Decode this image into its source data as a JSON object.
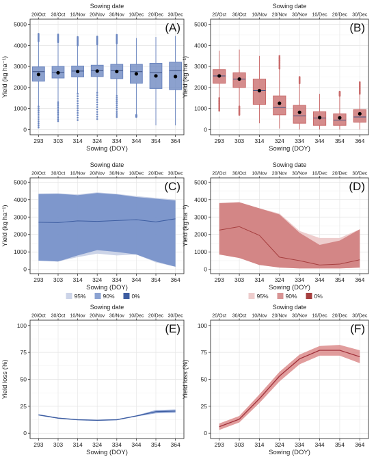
{
  "chart_data": [
    {
      "panel": "(A)",
      "type": "box",
      "color": "#6b86c0",
      "xlabel": "Sowing (DOY)",
      "ylabel": "Yield (kg ha⁻¹)",
      "top_label": "Sowing date",
      "top_ticks": [
        "20/Oct",
        "30/Oct",
        "10/Nov",
        "20/Nov",
        "30/Nov",
        "10/Dec",
        "20/Dec",
        "30/Dec"
      ],
      "x": [
        "293",
        "303",
        "314",
        "324",
        "334",
        "344",
        "354",
        "364"
      ],
      "ylim": [
        0,
        5000
      ],
      "yticks": [
        0,
        1000,
        2000,
        3000,
        4000,
        5000
      ],
      "boxes": [
        {
          "q1": 2300,
          "median": 2750,
          "q3": 2980,
          "mean": 2620,
          "wlo": 1100,
          "whi": 4200,
          "olo": 100,
          "ohi": 4550
        },
        {
          "q1": 2450,
          "median": 2720,
          "q3": 3000,
          "mean": 2700,
          "wlo": 1300,
          "whi": 4150,
          "olo": 400,
          "ohi": 4520
        },
        {
          "q1": 2500,
          "median": 2780,
          "q3": 3020,
          "mean": 2760,
          "wlo": 1700,
          "whi": 4000,
          "olo": 450,
          "ohi": 4400
        },
        {
          "q1": 2520,
          "median": 2800,
          "q3": 3060,
          "mean": 2780,
          "wlo": 1750,
          "whi": 4050,
          "olo": 500,
          "ohi": 4420
        },
        {
          "q1": 2420,
          "median": 2800,
          "q3": 3100,
          "mean": 2760,
          "wlo": 1600,
          "whi": 4100,
          "olo": 600,
          "ohi": 4500
        },
        {
          "q1": 2200,
          "median": 2750,
          "q3": 3100,
          "mean": 2650,
          "wlo": 700,
          "whi": 4350,
          "olo": 600,
          "ohi": 4350
        },
        {
          "q1": 1950,
          "median": 2700,
          "q3": 3150,
          "mean": 2550,
          "wlo": 200,
          "whi": 4400,
          "olo": 200,
          "ohi": 4400
        },
        {
          "q1": 1900,
          "median": 2800,
          "q3": 3200,
          "mean": 2520,
          "wlo": 200,
          "whi": 4450,
          "olo": 200,
          "ohi": 4450
        }
      ]
    },
    {
      "panel": "(B)",
      "type": "box",
      "color": "#c96b6b",
      "xlabel": "Sowing (DOY)",
      "ylabel": "Yield (kg ha⁻¹)",
      "top_label": "Sowing date",
      "top_ticks": [
        "20/Oct",
        "30/Oct",
        "10/Nov",
        "20/Nov",
        "30/Nov",
        "10/Dec",
        "20/Dec",
        "30/Dec"
      ],
      "x": [
        "293",
        "303",
        "314",
        "324",
        "334",
        "344",
        "354",
        "364"
      ],
      "ylim": [
        0,
        5000
      ],
      "yticks": [
        0,
        1000,
        2000,
        3000,
        4000,
        5000
      ],
      "boxes": [
        {
          "q1": 2200,
          "median": 2550,
          "q3": 2850,
          "mean": 2550,
          "wlo": 1500,
          "whi": 3750,
          "olo": 900,
          "ohi": 3750
        },
        {
          "q1": 2000,
          "median": 2400,
          "q3": 2700,
          "mean": 2400,
          "wlo": 1100,
          "whi": 3800,
          "olo": 700,
          "ohi": 3800
        },
        {
          "q1": 1200,
          "median": 1850,
          "q3": 2400,
          "mean": 1850,
          "wlo": 300,
          "whi": 3500,
          "olo": 300,
          "ohi": 3500
        },
        {
          "q1": 700,
          "median": 1050,
          "q3": 1600,
          "mean": 1250,
          "wlo": 50,
          "whi": 2900,
          "olo": 50,
          "ohi": 3500
        },
        {
          "q1": 300,
          "median": 650,
          "q3": 1150,
          "mean": 820,
          "wlo": 0,
          "whi": 2200,
          "olo": 0,
          "ohi": 2500
        },
        {
          "q1": 200,
          "median": 550,
          "q3": 850,
          "mean": 570,
          "wlo": 0,
          "whi": 1700,
          "olo": 0,
          "ohi": 1700
        },
        {
          "q1": 200,
          "median": 450,
          "q3": 750,
          "mean": 560,
          "wlo": 0,
          "whi": 1600,
          "olo": 0,
          "ohi": 1800
        },
        {
          "q1": 350,
          "median": 600,
          "q3": 950,
          "mean": 750,
          "wlo": 0,
          "whi": 1700,
          "olo": 0,
          "ohi": 2250
        }
      ]
    },
    {
      "panel": "(C)",
      "type": "area",
      "color": "#5f7fc1",
      "band_color": "#5f7fc1",
      "outer_color": "#c7cfe6",
      "line_color": "#3d5da1",
      "xlabel": "Sowing (DOY)",
      "ylabel": "Yield (kg ha⁻¹)",
      "top_label": "Sowing date",
      "top_ticks": [
        "20/Oct",
        "30/Oct",
        "10/Nov",
        "20/Nov",
        "30/Nov",
        "10/Dec",
        "20/Dec",
        "30/Dec"
      ],
      "x": [
        293,
        303,
        314,
        324,
        334,
        344,
        354,
        364
      ],
      "xticks": [
        "293",
        "303",
        "314",
        "324",
        "334",
        "344",
        "354",
        "364"
      ],
      "ylim": [
        0,
        5000
      ],
      "yticks": [
        0,
        1000,
        2000,
        3000,
        4000,
        5000
      ],
      "legend": [
        "95%",
        "90%",
        "0%"
      ],
      "upper95": [
        4350,
        4360,
        4300,
        4420,
        4330,
        4200,
        4100,
        4000
      ],
      "lower95": [
        500,
        450,
        700,
        900,
        800,
        850,
        400,
        150
      ],
      "upper90": [
        4320,
        4340,
        4250,
        4380,
        4300,
        4150,
        4050,
        3950
      ],
      "lower90": [
        500,
        450,
        800,
        1100,
        1000,
        850,
        450,
        150
      ],
      "median": [
        2700,
        2680,
        2780,
        2750,
        2800,
        2850,
        2720,
        2900
      ]
    },
    {
      "panel": "(D)",
      "type": "area",
      "color": "#c96b6b",
      "band_color": "#c96b6b",
      "outer_color": "#ecc8c8",
      "line_color": "#a63f3f",
      "xlabel": "Sowing (DOY)",
      "ylabel": "Yield (kg ha⁻¹)",
      "top_label": "Sowing date",
      "top_ticks": [
        "20/Oct",
        "30/Oct",
        "10/Nov",
        "20/Nov",
        "30/Nov",
        "10/Dec",
        "20/Dec",
        "30/Dec"
      ],
      "x": [
        293,
        303,
        314,
        324,
        334,
        344,
        354,
        364
      ],
      "xticks": [
        "293",
        "303",
        "314",
        "324",
        "334",
        "344",
        "354",
        "364"
      ],
      "ylim": [
        0,
        5000
      ],
      "yticks": [
        0,
        1000,
        2000,
        3000,
        4000,
        5000
      ],
      "legend": [
        "95%",
        "90%",
        "0%"
      ],
      "upper95": [
        3800,
        3850,
        3500,
        3200,
        2200,
        1800,
        1800,
        2300
      ],
      "lower95": [
        850,
        650,
        250,
        100,
        50,
        50,
        50,
        100
      ],
      "upper90": [
        3800,
        3850,
        3500,
        3150,
        2100,
        1400,
        1650,
        2300
      ],
      "lower90": [
        850,
        650,
        250,
        100,
        50,
        50,
        50,
        100
      ],
      "median": [
        2250,
        2450,
        1950,
        700,
        500,
        250,
        300,
        550
      ]
    },
    {
      "panel": "(E)",
      "type": "line",
      "color": "#5f7fc1",
      "band_color": "#7f99cf",
      "line_color": "#3d5da1",
      "xlabel": "Sowing (DOY)",
      "ylabel": "Yield loss (%)",
      "top_label": "Sowing date",
      "top_ticks": [
        "20/Oct",
        "30/Oct",
        "10/Nov",
        "20/Nov",
        "30/Nov",
        "10/Dec",
        "20/Dec",
        "30/Dec"
      ],
      "x": [
        293,
        303,
        314,
        324,
        334,
        344,
        354,
        364
      ],
      "xticks": [
        "293",
        "303",
        "314",
        "324",
        "334",
        "344",
        "354",
        "364"
      ],
      "ylim": [
        0,
        100
      ],
      "yticks": [
        0,
        25,
        50,
        75,
        100
      ],
      "values": [
        17,
        14,
        12.5,
        12,
        12.5,
        16,
        20,
        20.5
      ],
      "upper": [
        17.5,
        14.5,
        13,
        12.5,
        13,
        16.5,
        21.5,
        22
      ],
      "lower": [
        16.5,
        13.5,
        12,
        11.5,
        12,
        15.5,
        18.5,
        19
      ]
    },
    {
      "panel": "(F)",
      "type": "line",
      "color": "#c96b6b",
      "band_color": "#d98585",
      "line_color": "#a0303a",
      "xlabel": "Sowing (DOY)",
      "ylabel": "Yield loss (%)",
      "top_label": "Sowing date",
      "top_ticks": [
        "20/Oct",
        "30/Oct",
        "10/Nov",
        "20/Nov",
        "30/Nov",
        "10/Dec",
        "20/Dec",
        "30/Dec"
      ],
      "x": [
        293,
        303,
        314,
        324,
        334,
        344,
        354,
        364
      ],
      "xticks": [
        "293",
        "303",
        "314",
        "324",
        "334",
        "344",
        "354",
        "364"
      ],
      "ylim": [
        0,
        100
      ],
      "yticks": [
        0,
        25,
        50,
        75,
        100
      ],
      "values": [
        6,
        13,
        32,
        53,
        69,
        77,
        77,
        71
      ],
      "upper": [
        9,
        16,
        36,
        57,
        73,
        81,
        82,
        77
      ],
      "lower": [
        3,
        10,
        28,
        48,
        64,
        72,
        72,
        65
      ]
    }
  ]
}
